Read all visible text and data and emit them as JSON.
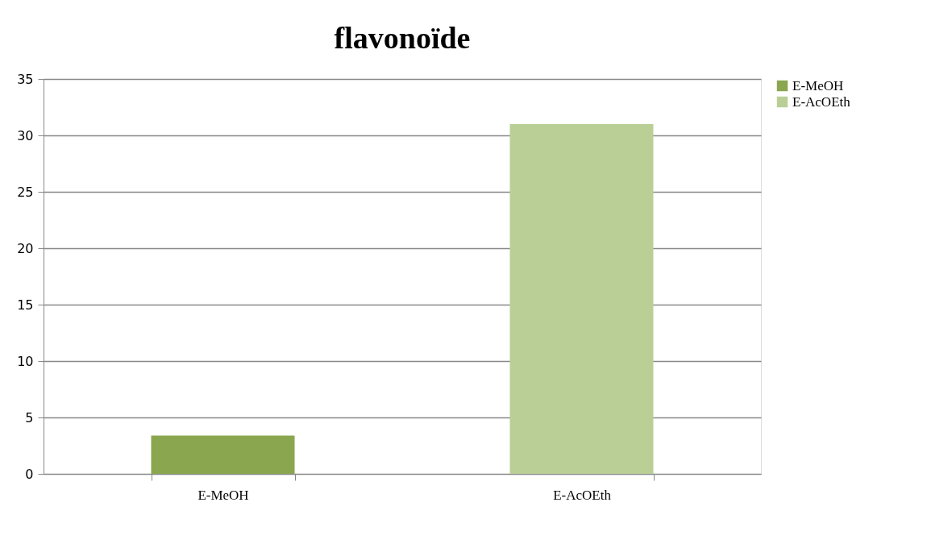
{
  "chart_data": {
    "type": "bar",
    "title": "flavonoïde",
    "categories": [
      "E-MeOH",
      "E-AcOEth"
    ],
    "series": [
      {
        "name": "E-MeOH",
        "color": "#8aa64f",
        "values": [
          3.4,
          null
        ]
      },
      {
        "name": "E-AcOEth",
        "color": "#b9cf96",
        "values": [
          null,
          31
        ]
      }
    ],
    "ylim": [
      0,
      35
    ],
    "yticks": [
      0,
      5,
      10,
      15,
      20,
      25,
      30,
      35
    ],
    "grid": "y",
    "legend": "right"
  }
}
